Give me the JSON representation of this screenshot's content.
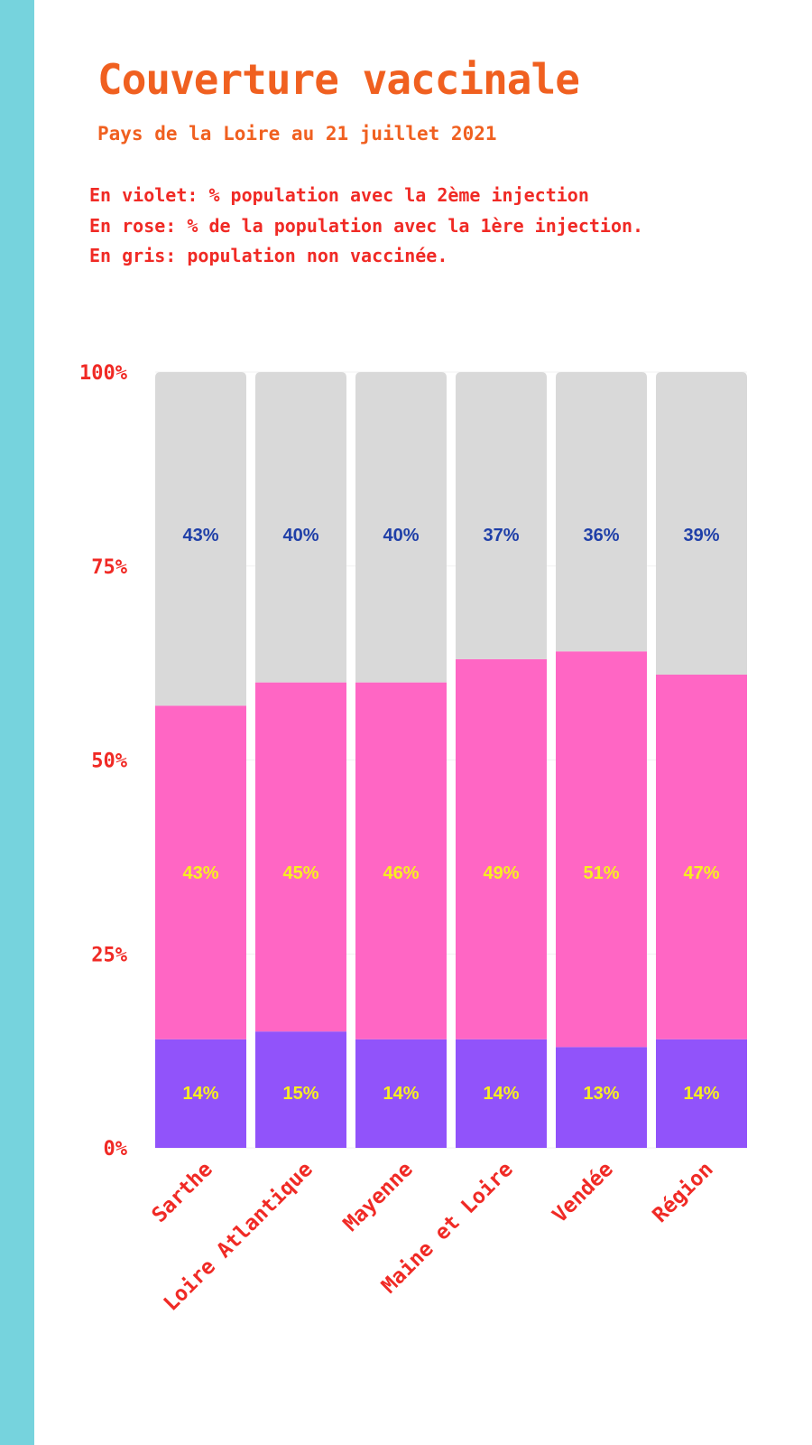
{
  "title": "Couverture vaccinale",
  "subtitle": "Pays de la Loire au 21 juillet 2021",
  "legend_note": [
    "En violet: % population avec la 2ème injection",
    "En rose: % de la population avec la 1ère injection.",
    "En gris: population non vaccinée."
  ],
  "colors": {
    "stripe": "#76d3dd",
    "title": "#f06020",
    "axis_text": "#f02a25",
    "label_top": "#1f3fa8",
    "label_inner": "#f7f01e"
  },
  "chart_data": {
    "type": "bar",
    "stacked": true,
    "categories": [
      "Sarthe",
      "Loire Atlantique",
      "Mayenne",
      "Maine et Loire",
      "Vendée",
      "Région"
    ],
    "series": [
      {
        "color": "#9153fa",
        "values": [
          14,
          15,
          14,
          14,
          13,
          14
        ],
        "labels": [
          "14%",
          "15%",
          "14%",
          "14%",
          "13%",
          "14%"
        ]
      },
      {
        "color": "#ff66c4",
        "values": [
          43,
          45,
          46,
          49,
          51,
          47
        ],
        "labels": [
          "43%",
          "45%",
          "46%",
          "49%",
          "51%",
          "47%"
        ]
      },
      {
        "color": "#d9d9d9",
        "values": [
          43,
          40,
          40,
          37,
          36,
          39
        ],
        "labels": [
          "43%",
          "40%",
          "40%",
          "37%",
          "36%",
          "39%"
        ]
      }
    ],
    "ylim": [
      0,
      100
    ],
    "yticks": [
      0,
      25,
      50,
      75,
      100
    ],
    "ytick_labels": [
      "0%",
      "25%",
      "50%",
      "75%",
      "100%"
    ],
    "xlabel": "",
    "ylabel": "",
    "grid": true
  }
}
